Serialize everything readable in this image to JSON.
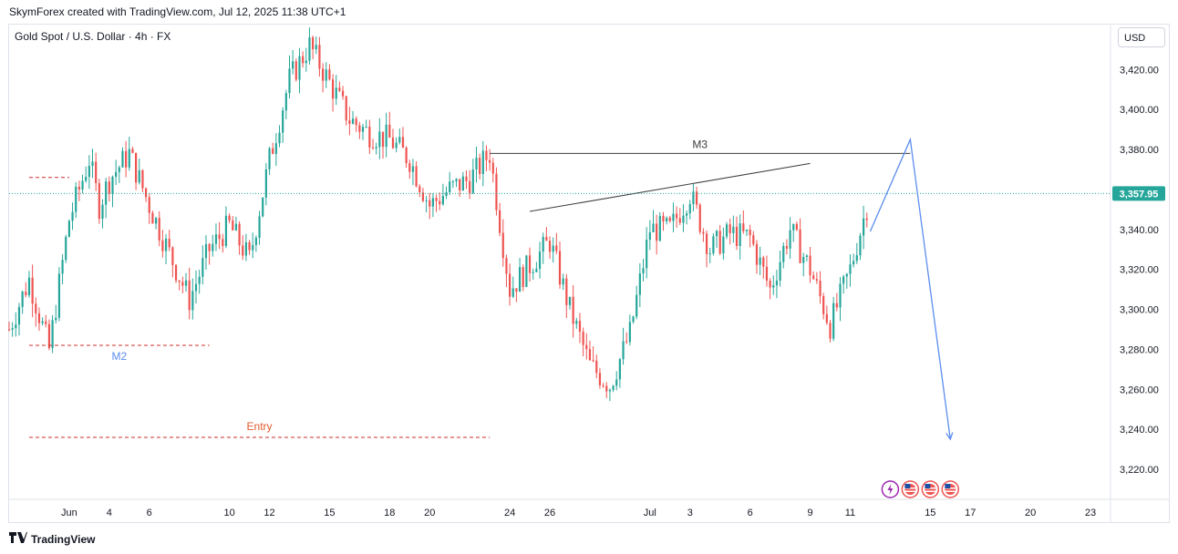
{
  "header": {
    "caption": "SkymForex created with TradingView.com, Jul 12, 2025 11:38 UTC+1",
    "symbol_title": "Gold Spot / U.S. Dollar · 4h · FX",
    "currency": "USD"
  },
  "footer": {
    "brand": "TradingView"
  },
  "colors": {
    "up": "#26a69a",
    "down": "#ef5350",
    "projection": "#5b8def",
    "entry": "#e05a2b",
    "m2": "#5b8def",
    "level_line": "#3c3c3c",
    "price_line": "#26a69a",
    "red_dashed": "#c9302c"
  },
  "chart_data": {
    "type": "candlestick",
    "title": "Gold Spot / U.S. Dollar · 4h · FX",
    "y_unit": "USD",
    "ylim": [
      3205,
      3442
    ],
    "y_ticks": [
      3220,
      3240,
      3260,
      3280,
      3300,
      3320,
      3340,
      3360,
      3380,
      3400,
      3420
    ],
    "y_tick_labels": [
      "3,220.00",
      "3,240.00",
      "3,260.00",
      "3,280.00",
      "3,300.00",
      "3,320.00",
      "3,340.00",
      "3,360.00",
      "3,380.00",
      "3,400.00",
      "3,420.00"
    ],
    "x_ticks": [
      {
        "label": "Jun",
        "date": "2025-06-02"
      },
      {
        "label": "4",
        "date": "2025-06-04"
      },
      {
        "label": "6",
        "date": "2025-06-06"
      },
      {
        "label": "10",
        "date": "2025-06-10"
      },
      {
        "label": "12",
        "date": "2025-06-12"
      },
      {
        "label": "15",
        "date": "2025-06-15"
      },
      {
        "label": "18",
        "date": "2025-06-18"
      },
      {
        "label": "20",
        "date": "2025-06-20"
      },
      {
        "label": "24",
        "date": "2025-06-24"
      },
      {
        "label": "26",
        "date": "2025-06-26"
      },
      {
        "label": "Jul",
        "date": "2025-07-01"
      },
      {
        "label": "3",
        "date": "2025-07-03"
      },
      {
        "label": "6",
        "date": "2025-07-06"
      },
      {
        "label": "9",
        "date": "2025-07-09"
      },
      {
        "label": "11",
        "date": "2025-07-11"
      },
      {
        "label": "15",
        "date": "2025-07-15"
      },
      {
        "label": "17",
        "date": "2025-07-17"
      },
      {
        "label": "20",
        "date": "2025-07-20"
      },
      {
        "label": "23",
        "date": "2025-07-23"
      }
    ],
    "last_price": 3357.95,
    "last_price_label": "3,357.95",
    "levels": [
      {
        "name": "M3",
        "price": 3378,
        "start": "2025-06-23",
        "end": "2025-07-14",
        "style": "solid"
      },
      {
        "name": "M2",
        "price": 3282,
        "start": "2025-05-31",
        "end": "2025-06-09",
        "style": "dashed"
      },
      {
        "name": "Entry",
        "price": 3236,
        "start": "2025-05-31",
        "end": "2025-06-23",
        "style": "dashed"
      },
      {
        "name": "",
        "price": 3366,
        "start": "2025-05-31",
        "end": "2025-06-02",
        "style": "dashed"
      }
    ],
    "trendline": {
      "start": [
        "2025-06-25",
        3349
      ],
      "end": [
        "2025-07-09",
        3373
      ]
    },
    "projection": [
      [
        "2025-07-12",
        3339
      ],
      [
        "2025-07-14",
        3385
      ],
      [
        "2025-07-16",
        3235
      ]
    ],
    "ohlc_waypoints": [
      [
        "2025-05-30",
        3290
      ],
      [
        "2025-05-31",
        3315
      ],
      [
        "2025-06-01",
        3280
      ],
      [
        "2025-06-02",
        3345
      ],
      [
        "2025-06-03",
        3375
      ],
      [
        "2025-06-03T12",
        3352
      ],
      [
        "2025-06-04",
        3365
      ],
      [
        "2025-06-05",
        3378
      ],
      [
        "2025-06-06",
        3352
      ],
      [
        "2025-06-07",
        3328
      ],
      [
        "2025-06-08",
        3305
      ],
      [
        "2025-06-09",
        3330
      ],
      [
        "2025-06-10",
        3342
      ],
      [
        "2025-06-11",
        3325
      ],
      [
        "2025-06-12",
        3375
      ],
      [
        "2025-06-13",
        3415
      ],
      [
        "2025-06-14",
        3432
      ],
      [
        "2025-06-16",
        3395
      ],
      [
        "2025-06-17",
        3388
      ],
      [
        "2025-06-18",
        3385
      ],
      [
        "2025-06-19",
        3375
      ],
      [
        "2025-06-20",
        3352
      ],
      [
        "2025-06-21",
        3360
      ],
      [
        "2025-06-22",
        3365
      ],
      [
        "2025-06-23",
        3378
      ],
      [
        "2025-06-24",
        3310
      ],
      [
        "2025-06-25",
        3322
      ],
      [
        "2025-06-26",
        3334
      ],
      [
        "2025-06-27",
        3300
      ],
      [
        "2025-06-28",
        3272
      ],
      [
        "2025-06-29",
        3262
      ],
      [
        "2025-06-30",
        3288
      ],
      [
        "2025-07-01",
        3340
      ],
      [
        "2025-07-02",
        3340
      ],
      [
        "2025-07-03",
        3358
      ],
      [
        "2025-07-04",
        3330
      ],
      [
        "2025-07-05",
        3338
      ],
      [
        "2025-07-06",
        3336
      ],
      [
        "2025-07-07",
        3310
      ],
      [
        "2025-07-08",
        3340
      ],
      [
        "2025-07-09",
        3320
      ],
      [
        "2025-07-10",
        3292
      ],
      [
        "2025-07-11",
        3320
      ],
      [
        "2025-07-12",
        3358
      ]
    ],
    "events": [
      {
        "date": "2025-07-13",
        "type": "lightning"
      },
      {
        "date": "2025-07-14",
        "type": "us-flag"
      },
      {
        "date": "2025-07-15",
        "type": "us-flag"
      },
      {
        "date": "2025-07-16",
        "type": "us-flag"
      }
    ]
  }
}
